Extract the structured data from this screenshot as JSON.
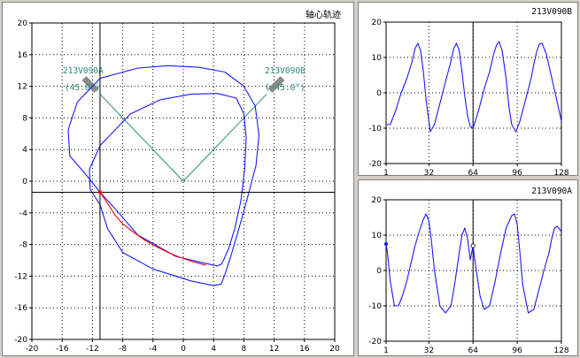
{
  "colors": {
    "trace": "#1a1aff",
    "highlight": "#ff0000",
    "probe_line": "#2e8b7a",
    "cursor": "#000000",
    "probe_body": "#8a8a8a"
  },
  "chart_data": [
    {
      "type": "line",
      "title": "轴心轨迹",
      "xlim": [
        -20,
        20
      ],
      "ylim": [
        -20,
        20
      ],
      "x_ticks": [
        -20,
        -16,
        -12,
        -8,
        -4,
        0,
        4,
        8,
        12,
        16,
        20
      ],
      "y_ticks": [
        -20,
        -16,
        -12,
        -8,
        -4,
        0,
        4,
        8,
        12,
        16,
        20
      ],
      "x_tick_labels": [
        "-20",
        "-16",
        "-12",
        "-8",
        "-4",
        "0",
        "4",
        "8",
        "12",
        "16",
        "20"
      ],
      "y_tick_labels": [
        "-20",
        "-16",
        "-12",
        "-8",
        "-4",
        "0",
        "4",
        "8",
        "12",
        "16",
        "20"
      ],
      "grid": true,
      "probes": [
        {
          "name": "213V090A",
          "angle": "(45.0°)",
          "side": "left"
        },
        {
          "name": "213V090B",
          "angle": "(-45.0°)",
          "side": "right"
        }
      ],
      "cursor": {
        "x": -11,
        "y": -1.4
      },
      "highlight_x": [
        -11,
        -10,
        -9,
        -8,
        -6.5,
        -5,
        -3.5,
        -2,
        -0.5,
        1,
        2.5,
        3
      ],
      "highlight_y": [
        -1.4,
        -2.8,
        -4.3,
        -5.4,
        -6.5,
        -7.5,
        -8.3,
        -9,
        -9.6,
        -10.1,
        -10.5,
        -10.6
      ],
      "x": [
        -11,
        -13,
        -15,
        -15.2,
        -14,
        -11,
        -6,
        -2,
        2,
        5.5,
        8,
        9.5,
        10,
        9.6,
        8.5,
        7.4,
        6.3,
        5.5,
        5,
        4,
        1,
        -4,
        -8,
        -10,
        -11,
        -12.3,
        -12.4,
        -11,
        -7,
        -3,
        1,
        4.5,
        7,
        8,
        8.3,
        8.1,
        7.6,
        6.8,
        6,
        5.2,
        5,
        4.5,
        2.5,
        -1,
        -6,
        -9,
        -11
      ],
      "y": [
        -1.4,
        1,
        3.2,
        6.5,
        10,
        13,
        14.3,
        14.6,
        14.4,
        13.8,
        12,
        9.5,
        5.8,
        2,
        -2,
        -5.8,
        -9.4,
        -11.8,
        -13,
        -13.2,
        -12.6,
        -11.1,
        -9,
        -6,
        -3,
        -1,
        1.5,
        4.5,
        8.5,
        10.3,
        11,
        11.1,
        10.5,
        8.5,
        5.5,
        1.5,
        -2.5,
        -6,
        -8.5,
        -10.2,
        -10.5,
        -10.7,
        -10.3,
        -9.5,
        -6.8,
        -3.5,
        -1.4
      ]
    },
    {
      "type": "line",
      "title": "213V090B",
      "xlim": [
        1,
        128
      ],
      "ylim": [
        -20,
        20
      ],
      "x_ticks": [
        1,
        32,
        64,
        96,
        128
      ],
      "y_ticks": [
        -20,
        -10,
        0,
        10,
        20
      ],
      "x_tick_labels": [
        "1",
        "32",
        "64",
        "96",
        "128"
      ],
      "y_tick_labels": [
        "-20",
        "-10",
        "0",
        "10",
        "20"
      ],
      "grid": true,
      "cursor_x": 64,
      "x": [
        1,
        4,
        8,
        12,
        16,
        20,
        22,
        24,
        26,
        28,
        30,
        33,
        36,
        40,
        44,
        48,
        50,
        52,
        54,
        56,
        58,
        60,
        62,
        64,
        68,
        72,
        76,
        79,
        81,
        83,
        85,
        88,
        90,
        92,
        95,
        98,
        102,
        106,
        108,
        110,
        112,
        114,
        117,
        120,
        124,
        128
      ],
      "y": [
        -9,
        -9,
        -5,
        0,
        4,
        9,
        12.5,
        14,
        12,
        6,
        -2,
        -11,
        -9,
        -3,
        3,
        9,
        12.5,
        14,
        12,
        6,
        -1,
        -6.5,
        -9.5,
        -10,
        -5,
        1,
        6,
        11,
        13.5,
        14.5,
        12,
        4,
        -4,
        -9,
        -11,
        -8,
        -2,
        4,
        8,
        11.5,
        13.8,
        14,
        11,
        6,
        -1,
        -8
      ]
    },
    {
      "type": "line",
      "title": "213V090A",
      "xlim": [
        1,
        128
      ],
      "ylim": [
        -20,
        20
      ],
      "x_ticks": [
        1,
        32,
        64,
        96,
        128
      ],
      "y_ticks": [
        -20,
        -10,
        0,
        10,
        20
      ],
      "x_tick_labels": [
        "1",
        "32",
        "64",
        "96",
        "128"
      ],
      "y_tick_labels": [
        "-20",
        "-10",
        "0",
        "10",
        "20"
      ],
      "grid": true,
      "cursor_x": 64,
      "x": [
        1,
        2,
        4,
        7,
        10,
        13,
        16,
        19,
        22,
        25,
        28,
        30,
        32,
        34,
        36,
        40,
        44,
        48,
        51,
        54,
        56,
        58,
        60,
        62,
        64,
        66,
        69,
        72,
        76,
        80,
        84,
        88,
        92,
        94,
        96,
        98,
        100,
        104,
        108,
        112,
        116,
        119,
        121,
        123,
        125,
        128
      ],
      "y": [
        7.5,
        5,
        -3,
        -10,
        -10,
        -7,
        -3,
        2,
        7,
        11,
        14.5,
        16,
        14,
        8,
        0,
        -10,
        -12,
        -10,
        -3,
        5,
        10,
        12,
        9,
        3,
        7,
        1,
        -7,
        -11,
        -10,
        -3,
        5,
        12,
        15.5,
        16,
        13,
        5,
        -4,
        -12,
        -11,
        -5,
        1,
        5,
        9,
        12,
        12.5,
        11
      ]
    }
  ]
}
